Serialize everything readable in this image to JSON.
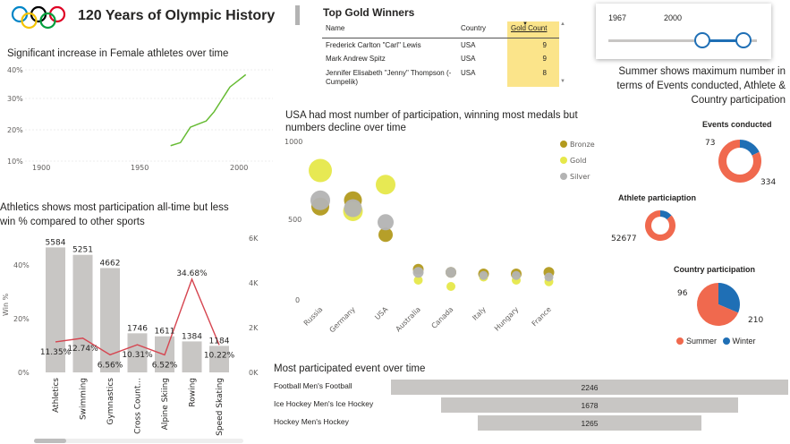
{
  "header": {
    "title": "120 Years of Olympic History"
  },
  "female_chart": {
    "title": "Significant increase in Female athletes over time",
    "chart_data": {
      "type": "line",
      "x": [
        1970,
        1975,
        1980,
        1984,
        1988,
        1992,
        1996,
        2000
      ],
      "values": [
        15,
        16,
        21,
        22,
        23,
        26,
        30,
        34
      ],
      "extra_points": [
        [
          2004,
          36
        ],
        [
          2008,
          38
        ]
      ],
      "xticks": [
        "1900",
        "1950",
        "2000"
      ],
      "yticks": [
        "10%",
        "20%",
        "30%",
        "40%"
      ],
      "xlim": [
        1880,
        2018
      ],
      "ylim": [
        9,
        42
      ],
      "color": "#66bb33"
    }
  },
  "athletics_chart": {
    "title_line1": "Athletics shows most participation all-time but less",
    "title_line2": "win % compared to other sports",
    "y_axis_label": "Win %",
    "chart_data": {
      "type": "bar",
      "categories": [
        "Athletics",
        "Swimming",
        "Gymnastics",
        "Cross Count...",
        "Alpine Skiing",
        "Rowing",
        "Speed Skating"
      ],
      "values": [
        5584,
        5251,
        4662,
        1746,
        1611,
        1384,
        1184
      ],
      "win_pct_labels": [
        "11.35%",
        "12.74%",
        "6.56%",
        "10.31%",
        "6.52%",
        "34.68%",
        "10.22%"
      ],
      "win_pct": [
        11.35,
        12.74,
        6.56,
        10.31,
        6.52,
        34.68,
        10.22
      ],
      "left_ticks": [
        "0%",
        "20%",
        "40%"
      ],
      "right_ticks": [
        "0K",
        "2K",
        "4K",
        "6K"
      ],
      "bar_color": "#c8c6c4",
      "line_color": "#d64550"
    }
  },
  "top_gold": {
    "title": "Top Gold Winners",
    "columns": [
      "Name",
      "Country",
      "Gold Count"
    ],
    "rows": [
      {
        "name": "Frederick Carlton \"Carl\" Lewis",
        "country": "USA",
        "gold": "9"
      },
      {
        "name": "Mark Andrew Spitz",
        "country": "USA",
        "gold": "9"
      },
      {
        "name": "Jennifer Elisabeth \"Jenny\" Thompson (-Cumpelik)",
        "country": "USA",
        "gold": "8"
      }
    ]
  },
  "slider": {
    "start": "1967",
    "end": "2000"
  },
  "usa_chart": {
    "title_line1": "USA had most number of participation, winning most medals but",
    "title_line2": "numbers decline over time",
    "chart_data": {
      "type": "scatter",
      "categories": [
        "Russia",
        "Germany",
        "USA",
        "Australia",
        "Canada",
        "Italy",
        "Hungary",
        "France"
      ],
      "yticks": [
        "0",
        "500",
        "1000"
      ],
      "ylim": [
        0,
        1000
      ],
      "series": [
        {
          "name": "Bronze",
          "color": "#b29a1e",
          "values": [
            590,
            630,
            410,
            190,
            170,
            160,
            160,
            170
          ],
          "sizes": [
            10,
            10,
            8,
            6,
            6,
            6,
            6,
            6
          ]
        },
        {
          "name": "Gold",
          "color": "#e6e84a",
          "values": [
            820,
            560,
            730,
            120,
            80,
            140,
            120,
            110
          ],
          "sizes": [
            13,
            11,
            11,
            5,
            5,
            5,
            5,
            5
          ]
        },
        {
          "name": "Silver",
          "color": "#b3b3b3",
          "values": [
            630,
            580,
            490,
            170,
            170,
            150,
            150,
            140
          ],
          "sizes": [
            11,
            10,
            9,
            6,
            6,
            5,
            5,
            5
          ]
        }
      ]
    }
  },
  "summer_note": {
    "line1": "Summer shows maximum number in",
    "line2": "terms of Events conducted, Athlete &",
    "line3": "Country participation"
  },
  "events_donut": {
    "title": "Events conducted",
    "label_winter": "73",
    "label_summer": "334",
    "values": [
      334,
      73
    ]
  },
  "athlete_donut": {
    "title": "Athlete particiaption",
    "label_summer": "52677",
    "values": [
      52677,
      8000
    ]
  },
  "country_pie": {
    "title": "Country participation",
    "label_winter": "96",
    "label_summer": "210",
    "values": [
      210,
      96
    ]
  },
  "season_legend": {
    "summer": "Summer",
    "winter": "Winter",
    "summer_color": "#f0694e",
    "winter_color": "#1f6fb5"
  },
  "event_chart": {
    "title": "Most participated event over time",
    "chart_data": {
      "type": "bar",
      "categories": [
        "Football Men's Football",
        "Ice Hockey Men's Ice Hockey",
        "Hockey Men's Hockey"
      ],
      "values": [
        2246,
        1678,
        1265
      ],
      "labels": [
        "2246",
        "1678",
        "1265"
      ],
      "color": "#c8c6c4"
    }
  }
}
